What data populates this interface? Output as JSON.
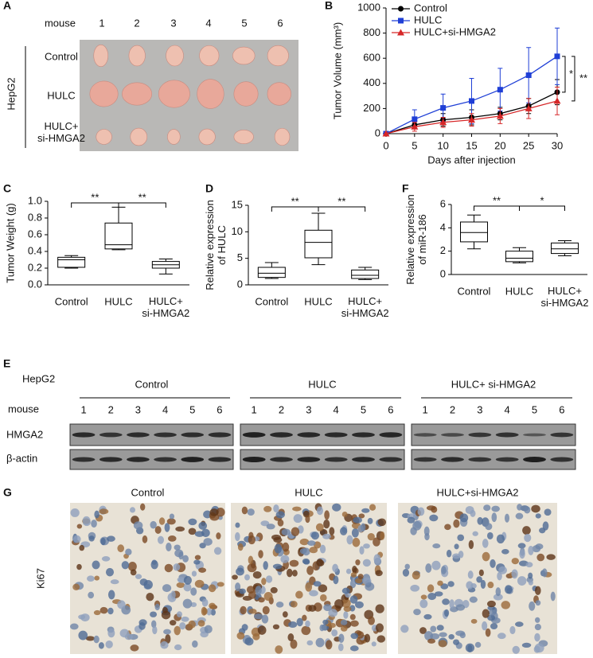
{
  "panel_a": {
    "letter": "A",
    "mouse_label": "mouse",
    "mice": [
      "1",
      "2",
      "3",
      "4",
      "5",
      "6"
    ],
    "cell_line": "HepG2",
    "groups": [
      "Control",
      "HULC",
      "HULC+\nsi-HMGA2"
    ]
  },
  "chart_data": [
    {
      "letter": "B",
      "type": "line",
      "ylabel": "Tumor Volume (mm³)",
      "xlabel": "Days after injection",
      "x": [
        0,
        5,
        10,
        15,
        20,
        25,
        30
      ],
      "xlim": [
        0,
        30
      ],
      "xticks": [
        0,
        5,
        10,
        15,
        20,
        25,
        30
      ],
      "ylim": [
        0,
        1000
      ],
      "yticks": [
        0,
        200,
        400,
        600,
        800,
        1000
      ],
      "series": [
        {
          "name": "Control",
          "color": "#000000",
          "marker": "circle",
          "values": [
            0,
            70,
            110,
            130,
            160,
            220,
            330
          ],
          "errors": [
            0,
            30,
            50,
            60,
            50,
            60,
            100
          ]
        },
        {
          "name": "HULC",
          "color": "#1f3fd6",
          "marker": "square",
          "values": [
            0,
            115,
            205,
            260,
            350,
            465,
            615
          ],
          "errors": [
            0,
            75,
            110,
            180,
            170,
            220,
            225
          ]
        },
        {
          "name": "HULC+si-HMGA2",
          "color": "#d62728",
          "marker": "triangle",
          "values": [
            0,
            55,
            90,
            110,
            140,
            200,
            260
          ],
          "errors": [
            0,
            35,
            40,
            50,
            60,
            80,
            110
          ]
        }
      ],
      "annotations": [
        "*",
        "**"
      ]
    },
    {
      "letter": "C",
      "type": "box",
      "ylabel": "Tumor Weight (g)",
      "categories": [
        "Control",
        "HULC",
        "HULC+\nsi-HMGA2"
      ],
      "ylim": [
        0,
        1
      ],
      "yticks": [
        {
          "value": 0,
          "label": "0.0"
        },
        0.2,
        0.4,
        0.6,
        0.8,
        {
          "value": 1,
          "label": "1.0"
        }
      ],
      "boxes": [
        {
          "min": 0.2,
          "q1": 0.21,
          "median": 0.3,
          "q3": 0.33,
          "max": 0.35
        },
        {
          "min": 0.42,
          "q1": 0.43,
          "median": 0.48,
          "q3": 0.74,
          "max": 0.93
        },
        {
          "min": 0.13,
          "q1": 0.2,
          "median": 0.24,
          "q3": 0.28,
          "max": 0.31
        }
      ],
      "annotations": [
        "**",
        "**"
      ]
    },
    {
      "letter": "D",
      "type": "box",
      "ylabel": "Relative expression\nof HULC",
      "categories": [
        "Control",
        "HULC",
        "HULC+\nsi-HMGA2"
      ],
      "ylim": [
        0,
        15
      ],
      "yticks": [
        0,
        5,
        10,
        15
      ],
      "boxes": [
        {
          "min": 1.2,
          "q1": 1.4,
          "median": 2.2,
          "q3": 3.3,
          "max": 4.2
        },
        {
          "min": 3.8,
          "q1": 5.1,
          "median": 8,
          "q3": 10.3,
          "max": 13.5
        },
        {
          "min": 1,
          "q1": 1.2,
          "median": 1.8,
          "q3": 2.8,
          "max": 3.3
        }
      ],
      "annotations": [
        "**",
        "**"
      ]
    },
    {
      "letter": "F",
      "type": "box",
      "ylabel": "Relative expression\nof miR-186",
      "categories": [
        "Control",
        "HULC",
        "HULC+\nsi-HMGA2"
      ],
      "ylim": [
        0,
        6
      ],
      "yticks": [
        0,
        2,
        4,
        6
      ],
      "boxes": [
        {
          "min": 2.2,
          "q1": 2.8,
          "median": 3.6,
          "q3": 4.5,
          "max": 5.1
        },
        {
          "min": 1,
          "q1": 1.1,
          "median": 1.4,
          "q3": 2,
          "max": 2.3
        },
        {
          "min": 1.6,
          "q1": 1.8,
          "median": 2.2,
          "q3": 2.7,
          "max": 2.9
        }
      ],
      "annotations": [
        "**",
        "*"
      ]
    }
  ],
  "panel_e": {
    "letter": "E",
    "cell_line": "HepG2",
    "groups": [
      "Control",
      "HULC",
      "HULC+ si-HMGA2"
    ],
    "mouse_label": "mouse",
    "mice": [
      "1",
      "2",
      "3",
      "4",
      "5",
      "6"
    ],
    "proteins": [
      "HMGA2",
      "β-actin"
    ]
  },
  "panel_g": {
    "letter": "G",
    "groups": [
      "Control",
      "HULC",
      "HULC+si-HMGA2"
    ],
    "stain": "Ki67"
  }
}
